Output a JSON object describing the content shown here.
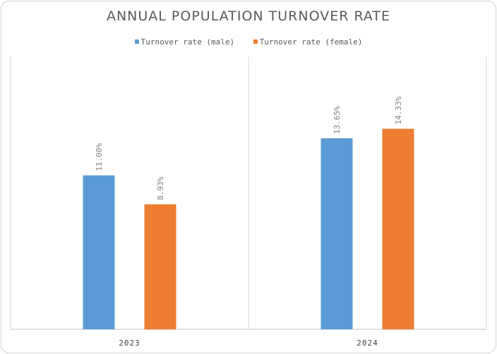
{
  "chart_data": {
    "type": "bar",
    "title": "ANNUAL POPULATION TURNOVER RATE",
    "categories": [
      "2023",
      "2024"
    ],
    "series": [
      {
        "name": "Turnover rate (male)",
        "values": [
          11.0,
          13.65
        ],
        "labels": [
          "11.00%",
          "13.65%"
        ],
        "color": "#5b9bd5"
      },
      {
        "name": "Turnover rate (female)",
        "values": [
          8.93,
          14.33
        ],
        "labels": [
          "8.93%",
          "14.33%"
        ],
        "color": "#ed7d31"
      }
    ],
    "ylim": [
      0,
      19.5
    ],
    "grid": false,
    "legend_position": "top"
  }
}
